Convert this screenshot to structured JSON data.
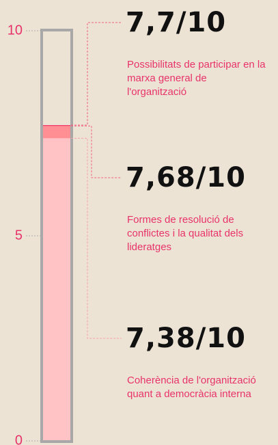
{
  "chart_data": {
    "type": "bar",
    "categories": [
      "Possibilitats de participar en la marxa general de l'organització",
      "Formes de resolució de conflictes i la qualitat dels lideratges",
      "Coherència de l'organització quant a democràcia interna"
    ],
    "values": [
      7.7,
      7.68,
      7.38
    ],
    "value_labels": [
      "7,7/10",
      "7,68/10",
      "7,38/10"
    ],
    "colors": [
      "#f0396a",
      "#ff8f93",
      "#ffc2c5"
    ],
    "ylim": [
      0,
      10
    ],
    "yticks": [
      0,
      5,
      10
    ]
  }
}
